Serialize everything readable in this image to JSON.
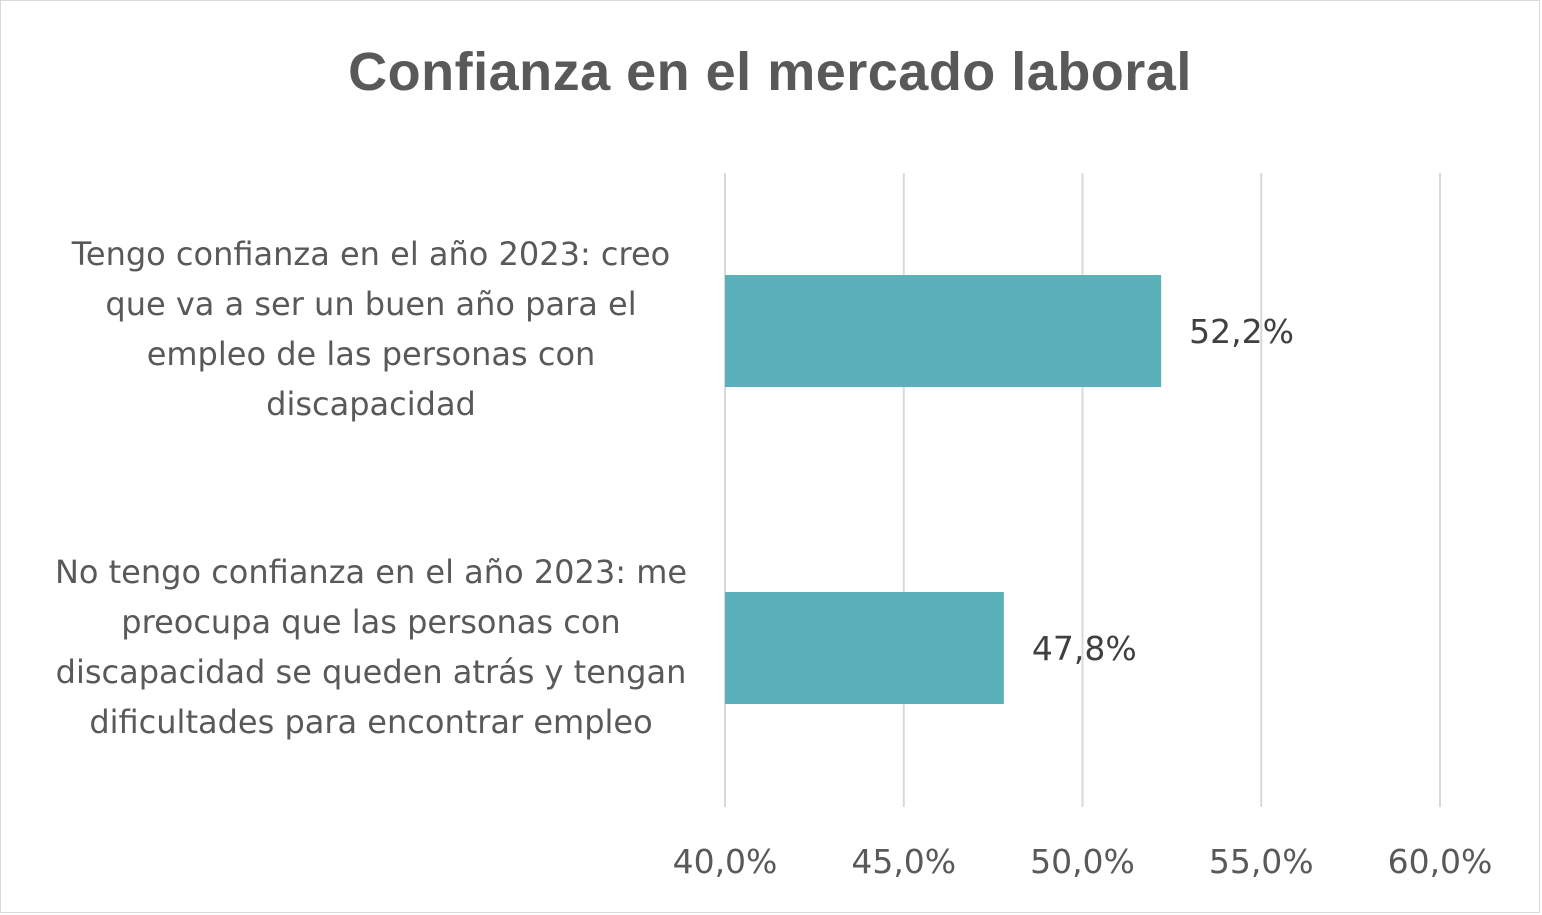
{
  "chart_data": {
    "type": "bar",
    "orientation": "horizontal",
    "title": "Confianza en el mercado laboral",
    "categories": [
      "Tengo confianza en el año 2023: creo que va a ser un buen año para el empleo de las personas con discapacidad",
      "No tengo confianza en el año 2023: me preocupa que las personas con discapacidad se queden atrás y tengan dificultades para encontrar empleo"
    ],
    "category_lines": [
      [
        "Tengo confianza en el año 2023: creo",
        "que va a ser un buen año para el",
        "empleo de las personas con",
        "discapacidad"
      ],
      [
        "No tengo confianza en el año 2023: me",
        "preocupa que las personas con",
        "discapacidad se queden atrás y tengan",
        "dificultades para encontrar empleo"
      ]
    ],
    "values": [
      52.2,
      47.8
    ],
    "data_labels": [
      "52,2%",
      "47,8%"
    ],
    "xlim": [
      40,
      60
    ],
    "xticks": [
      40,
      45,
      50,
      55,
      60
    ],
    "xtick_labels": [
      "40,0%",
      "45,0%",
      "50,0%",
      "55,0%",
      "60,0%"
    ],
    "grid": true,
    "bar_color": "#5bb1b9",
    "grid_color": "#d9d9d9",
    "text_color": "#595959"
  }
}
